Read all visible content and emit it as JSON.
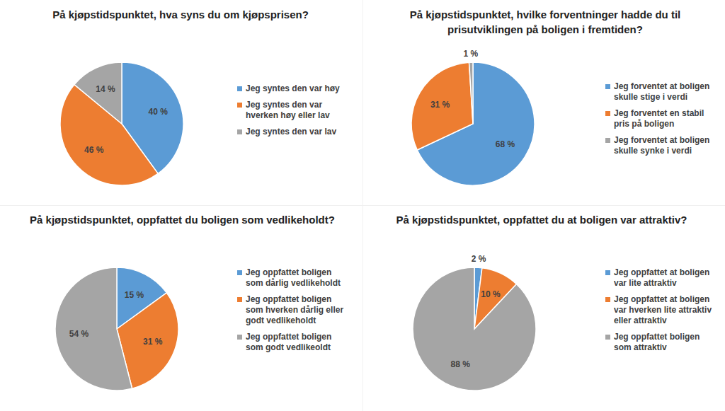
{
  "chart_data": [
    {
      "type": "pie",
      "title": "På kjøpstidspunktet, hva syns du om kjøpsprisen?",
      "categories": [
        "Jeg syntes den var høy",
        "Jeg syntes den var hverken høy eller lav",
        "Jeg syntes den var lav"
      ],
      "values": [
        40,
        46,
        14
      ],
      "value_labels": [
        "40 %",
        "46 %",
        "14 %"
      ],
      "colors": [
        "#5b9bd5",
        "#ed7d31",
        "#a5a5a5"
      ],
      "data_labels": true
    },
    {
      "type": "pie",
      "title": "På kjøpstidspunktet, hvilke forventninger hadde du til prisutviklingen på boligen i fremtiden?",
      "categories": [
        "Jeg forventet at boligen skulle stige i verdi",
        "Jeg forventet en stabil pris på boligen",
        "Jeg forventet at boligen skulle synke i verdi"
      ],
      "values": [
        68,
        31,
        1
      ],
      "value_labels": [
        "68 %",
        "31 %",
        "1 %"
      ],
      "colors": [
        "#5b9bd5",
        "#ed7d31",
        "#a5a5a5"
      ],
      "data_labels": true
    },
    {
      "type": "pie",
      "title": "På kjøpstidspunktet, oppfattet du boligen som vedlikeholdt?",
      "categories": [
        "Jeg oppfattet boligen som dårlig vedlikeholdt",
        "Jeg oppfattet boligen som hverken dårlig eller godt vedlikeholdt",
        "Jeg oppfattet boligen som godt vedlikeoldt"
      ],
      "values": [
        15,
        31,
        54
      ],
      "value_labels": [
        "15 %",
        "31 %",
        "54 %"
      ],
      "colors": [
        "#5b9bd5",
        "#ed7d31",
        "#a5a5a5"
      ],
      "data_labels": true
    },
    {
      "type": "pie",
      "title": "På kjøpstidspunktet, oppfattet du at boligen var attraktiv?",
      "categories": [
        "Jeg oppfattet at boligen var lite attraktiv",
        "Jeg oppfattet at boligen var hverken lite attraktiv eller attraktiv",
        "Jeg oppfattet boligen som attraktiv"
      ],
      "values": [
        2,
        10,
        88
      ],
      "value_labels": [
        "2 %",
        "10 %",
        "88 %"
      ],
      "colors": [
        "#5b9bd5",
        "#ed7d31",
        "#a5a5a5"
      ],
      "data_labels": true
    }
  ]
}
